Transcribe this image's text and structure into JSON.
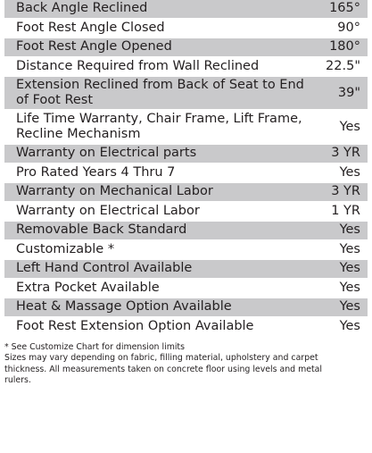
{
  "specs": {
    "rows": [
      {
        "label": "Back Angle Reclined",
        "value": "165°"
      },
      {
        "label": "Foot Rest Angle Closed",
        "value": "90°"
      },
      {
        "label": "Foot Rest Angle Opened",
        "value": "180°"
      },
      {
        "label": "Distance Required from Wall Reclined",
        "value": "22.5\""
      },
      {
        "label": "Extension Reclined from Back of Seat to End of Foot Rest",
        "value": "39\""
      },
      {
        "label": "Life Time Warranty, Chair Frame, Lift Frame, Recline Mechanism",
        "value": "Yes"
      },
      {
        "label": "Warranty on Electrical parts",
        "value": "3 YR"
      },
      {
        "label": "Pro Rated Years 4 Thru 7",
        "value": "Yes"
      },
      {
        "label": "Warranty on Mechanical Labor",
        "value": "3 YR"
      },
      {
        "label": "Warranty on Electrical Labor",
        "value": "1 YR"
      },
      {
        "label": "Removable Back Standard",
        "value": "Yes"
      },
      {
        "label": "Customizable *",
        "value": "Yes"
      },
      {
        "label": "Left Hand Control Available",
        "value": "Yes"
      },
      {
        "label": "Extra Pocket Available",
        "value": "Yes"
      },
      {
        "label": "Heat & Massage Option Available",
        "value": "Yes"
      },
      {
        "label": "Foot Rest Extension Option Available",
        "value": "Yes"
      }
    ]
  },
  "footnotes": {
    "customize_note": "* See Customize Chart for dimension limits",
    "measurement_note": "Sizes may vary depending on fabric, filling material, upholstery and carpet thickness. All measurements taken on concrete floor using levels and metal rulers."
  },
  "colors": {
    "shaded_row": "#c9c9cb",
    "text": "#231f20"
  }
}
